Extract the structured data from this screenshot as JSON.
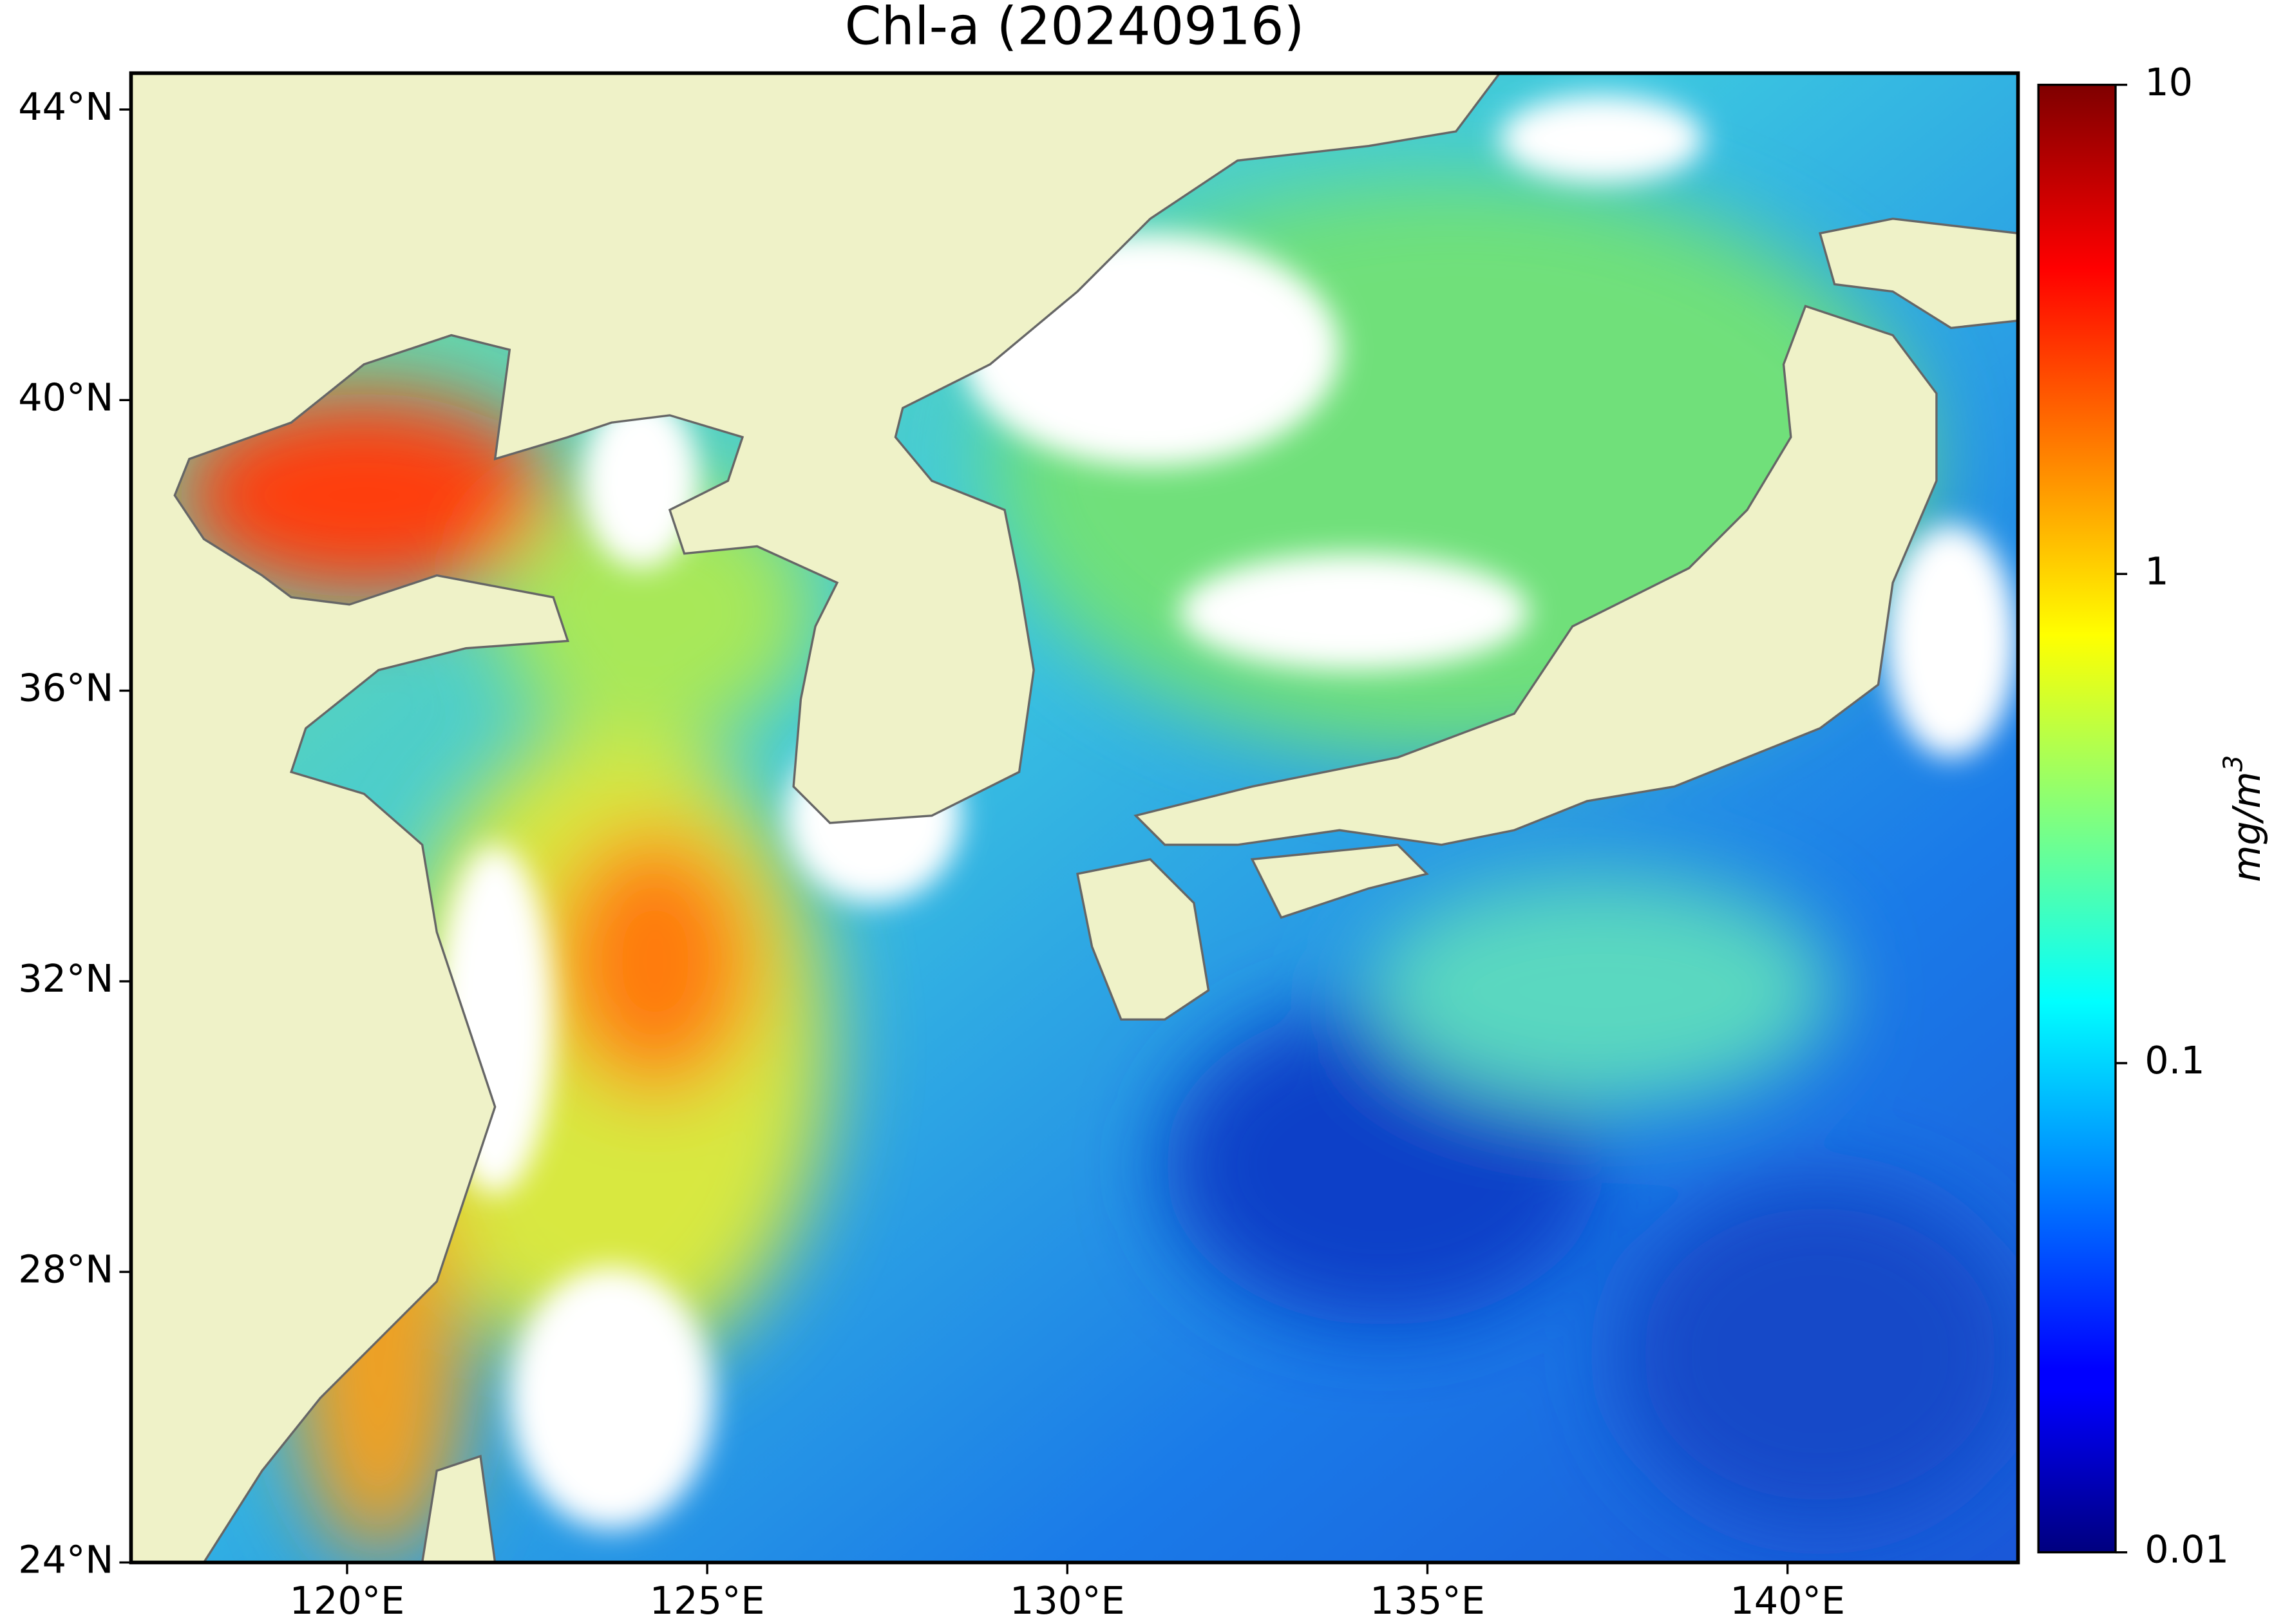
{
  "map": {
    "title": "Chl-a (20240916)",
    "xlim": [
      117,
      143.2
    ],
    "ylim": [
      24,
      44.5
    ],
    "xticks": [
      {
        "value": 120,
        "label": "120°E"
      },
      {
        "value": 125,
        "label": "125°E"
      },
      {
        "value": 130,
        "label": "130°E"
      },
      {
        "value": 135,
        "label": "135°E"
      },
      {
        "value": 140,
        "label": "140°E"
      }
    ],
    "yticks": [
      {
        "value": 24,
        "label": "24°N"
      },
      {
        "value": 28,
        "label": "28°N"
      },
      {
        "value": 32,
        "label": "32°N"
      },
      {
        "value": 36,
        "label": "36°N"
      },
      {
        "value": 40,
        "label": "40°N"
      },
      {
        "value": 44,
        "label": "44°N"
      }
    ]
  },
  "colorbar": {
    "label": "mg/m",
    "label_sup": "3",
    "scale": "log",
    "lim": [
      0.01,
      10
    ],
    "ticks": [
      0.01,
      0.1,
      1,
      10
    ]
  }
}
